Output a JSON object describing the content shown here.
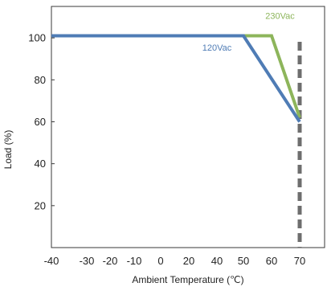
{
  "chart_data": {
    "type": "line",
    "title": "",
    "xlabel": "Ambient Temperature (℃)",
    "ylabel": "Load (%)",
    "xlim": [
      -40,
      75
    ],
    "ylim": [
      0,
      115
    ],
    "x_ticks": [
      -40,
      -30,
      -20,
      -10,
      0,
      20,
      40,
      50,
      60,
      70
    ],
    "y_ticks": [
      20,
      40,
      60,
      80,
      100
    ],
    "grid": false,
    "legend": "none",
    "series": [
      {
        "name": "230Vac",
        "color": "#8db55b",
        "x": [
          -40,
          50,
          60,
          70
        ],
        "y": [
          101,
          101,
          101,
          62
        ]
      },
      {
        "name": "120Vac",
        "color": "#4f7cb5",
        "x": [
          -40,
          50,
          70
        ],
        "y": [
          101,
          101,
          60
        ]
      }
    ],
    "annotations": [
      {
        "type": "vertical-dashed-line",
        "x": 70,
        "color": "#6e6e6e"
      }
    ]
  }
}
